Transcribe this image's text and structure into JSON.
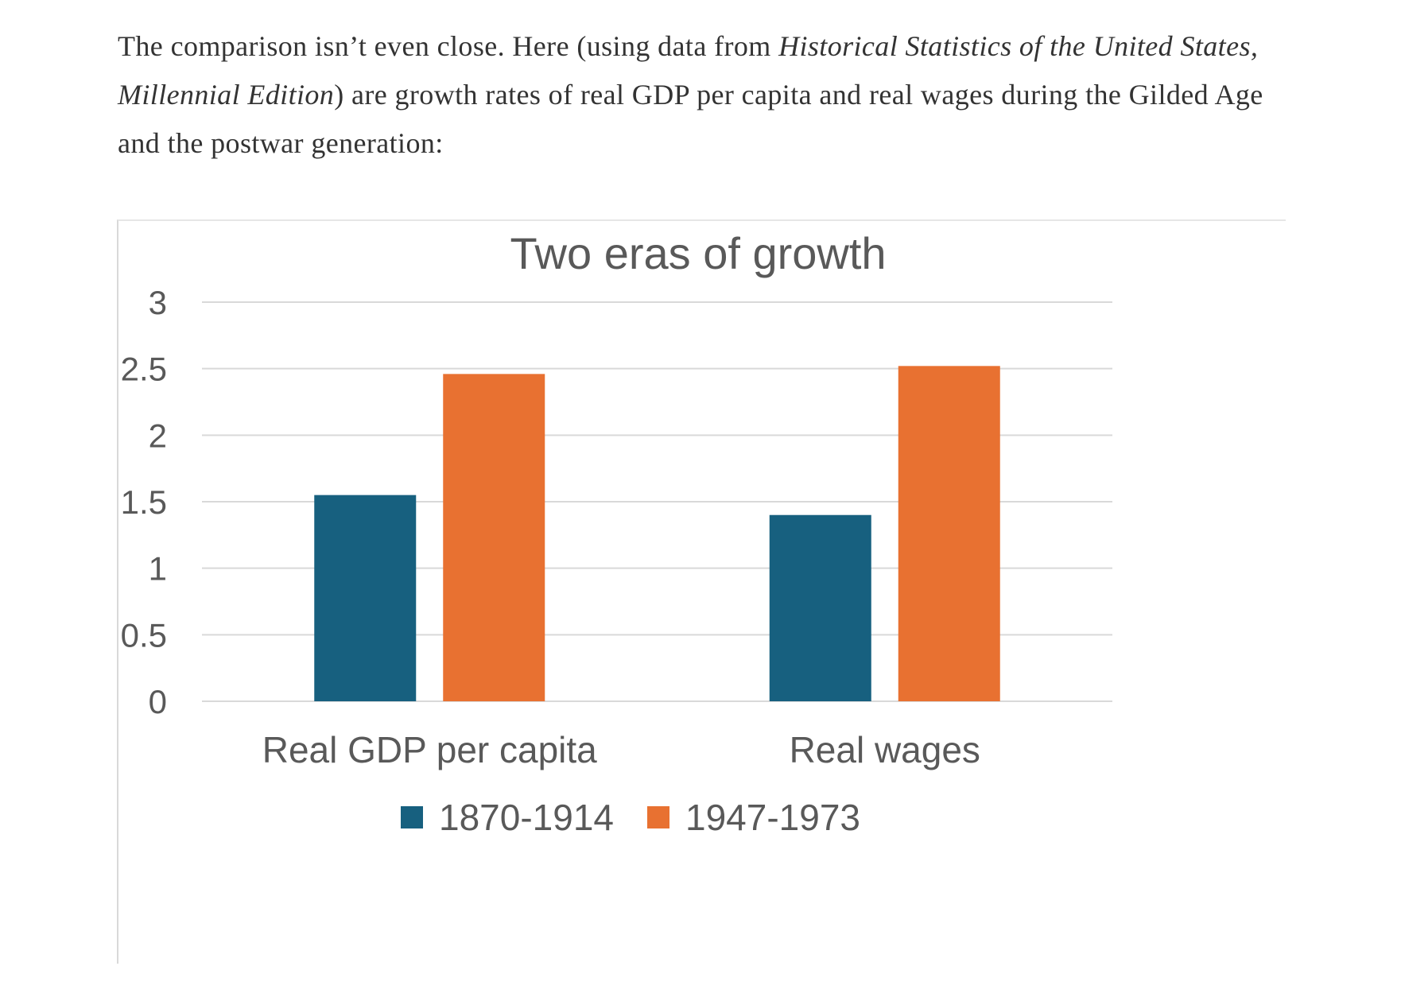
{
  "article": {
    "text_before": "The comparison isn’t even close. Here (using data from ",
    "source_italic": "Historical Statistics of the United States, Millennial Edition",
    "text_after": ") are growth rates of real GDP per capita and real wages during the Gilded Age and the postwar generation:"
  },
  "chart_data": {
    "type": "bar",
    "title": "Two eras of growth",
    "categories": [
      "Real GDP per capita",
      "Real wages"
    ],
    "series": [
      {
        "name": "1870-1914",
        "values": [
          1.55,
          1.4
        ],
        "color": "#17607f"
      },
      {
        "name": "1947-1973",
        "values": [
          2.46,
          2.52
        ],
        "color": "#e87131"
      }
    ],
    "ylim": [
      0,
      3
    ],
    "yticks": [
      "0",
      "0.5",
      "1",
      "1.5",
      "2",
      "2.5",
      "3"
    ],
    "grid": true,
    "legend_position": "bottom",
    "xlabel": "",
    "ylabel": ""
  }
}
